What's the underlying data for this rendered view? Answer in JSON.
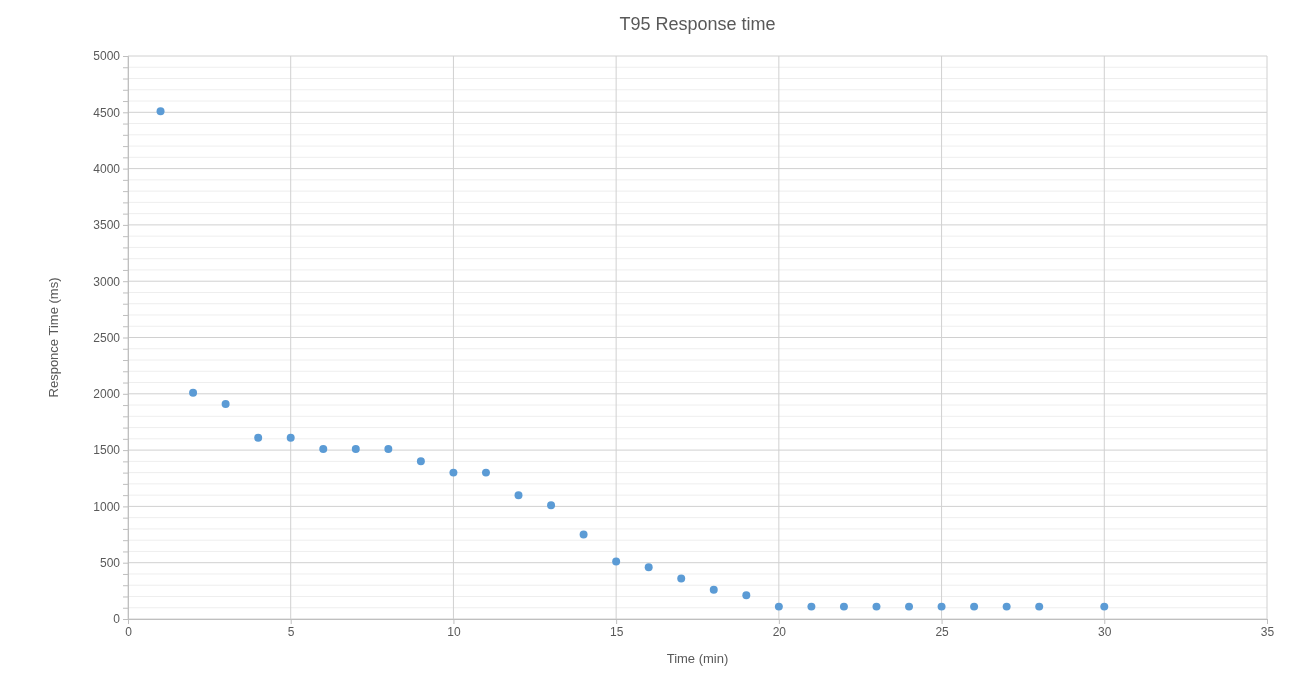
{
  "chart_data": {
    "type": "scatter",
    "title": "T95 Response time",
    "xlabel": "Time (min)",
    "ylabel": "Responce Time (ms)",
    "x": [
      1,
      2,
      3,
      4,
      5,
      6,
      7,
      8,
      9,
      10,
      11,
      12,
      13,
      14,
      15,
      16,
      17,
      18,
      19,
      20,
      21,
      22,
      23,
      24,
      25,
      26,
      27,
      28,
      30
    ],
    "series": [
      {
        "color": "#5b9bd5",
        "values": [
          4510,
          2010,
          1910,
          1610,
          1610,
          1510,
          1510,
          1510,
          1400,
          1300,
          1300,
          1100,
          1010,
          750,
          510,
          460,
          360,
          260,
          210,
          110,
          110,
          110,
          110,
          110,
          110,
          110,
          110,
          110,
          110
        ]
      }
    ],
    "xlim": [
      0,
      35
    ],
    "xticks": [
      0,
      5,
      10,
      15,
      20,
      25,
      30,
      35
    ],
    "ylim": [
      0,
      5000
    ],
    "yticks": [
      0,
      {
        "value": 100,
        "label": null
      },
      {
        "value": 200,
        "label": null
      },
      {
        "value": 300,
        "label": null
      },
      {
        "value": 400,
        "label": null
      },
      500,
      {
        "value": 600,
        "label": null
      },
      {
        "value": 700,
        "label": null
      },
      {
        "value": 800,
        "label": null
      },
      {
        "value": 900,
        "label": null
      },
      1000,
      {
        "value": 1100,
        "label": null
      },
      {
        "value": 1200,
        "label": null
      },
      {
        "value": 1300,
        "label": null
      },
      {
        "value": 1400,
        "label": null
      },
      1500,
      {
        "value": 1600,
        "label": null
      },
      {
        "value": 1700,
        "label": null
      },
      {
        "value": 1800,
        "label": null
      },
      {
        "value": 1900,
        "label": null
      },
      2000,
      {
        "value": 2100,
        "label": null
      },
      {
        "value": 2200,
        "label": null
      },
      {
        "value": 2300,
        "label": null
      },
      {
        "value": 2400,
        "label": null
      },
      2500,
      {
        "value": 2600,
        "label": null
      },
      {
        "value": 2700,
        "label": null
      },
      {
        "value": 2800,
        "label": null
      },
      {
        "value": 2900,
        "label": null
      },
      3000,
      {
        "value": 3100,
        "label": null
      },
      {
        "value": 3200,
        "label": null
      },
      {
        "value": 3300,
        "label": null
      },
      {
        "value": 3400,
        "label": null
      },
      3500,
      {
        "value": 3600,
        "label": null
      },
      {
        "value": 3700,
        "label": null
      },
      {
        "value": 3800,
        "label": null
      },
      {
        "value": 3900,
        "label": null
      },
      4000,
      {
        "value": 4100,
        "label": null
      },
      {
        "value": 4200,
        "label": null
      },
      {
        "value": 4300,
        "label": null
      },
      {
        "value": 4400,
        "label": null
      },
      4500,
      {
        "value": 4600,
        "label": null
      },
      {
        "value": 4700,
        "label": null
      },
      {
        "value": 4800,
        "label": null
      },
      {
        "value": 4900,
        "label": null
      },
      5000
    ],
    "grid": true,
    "marker": "circle"
  }
}
